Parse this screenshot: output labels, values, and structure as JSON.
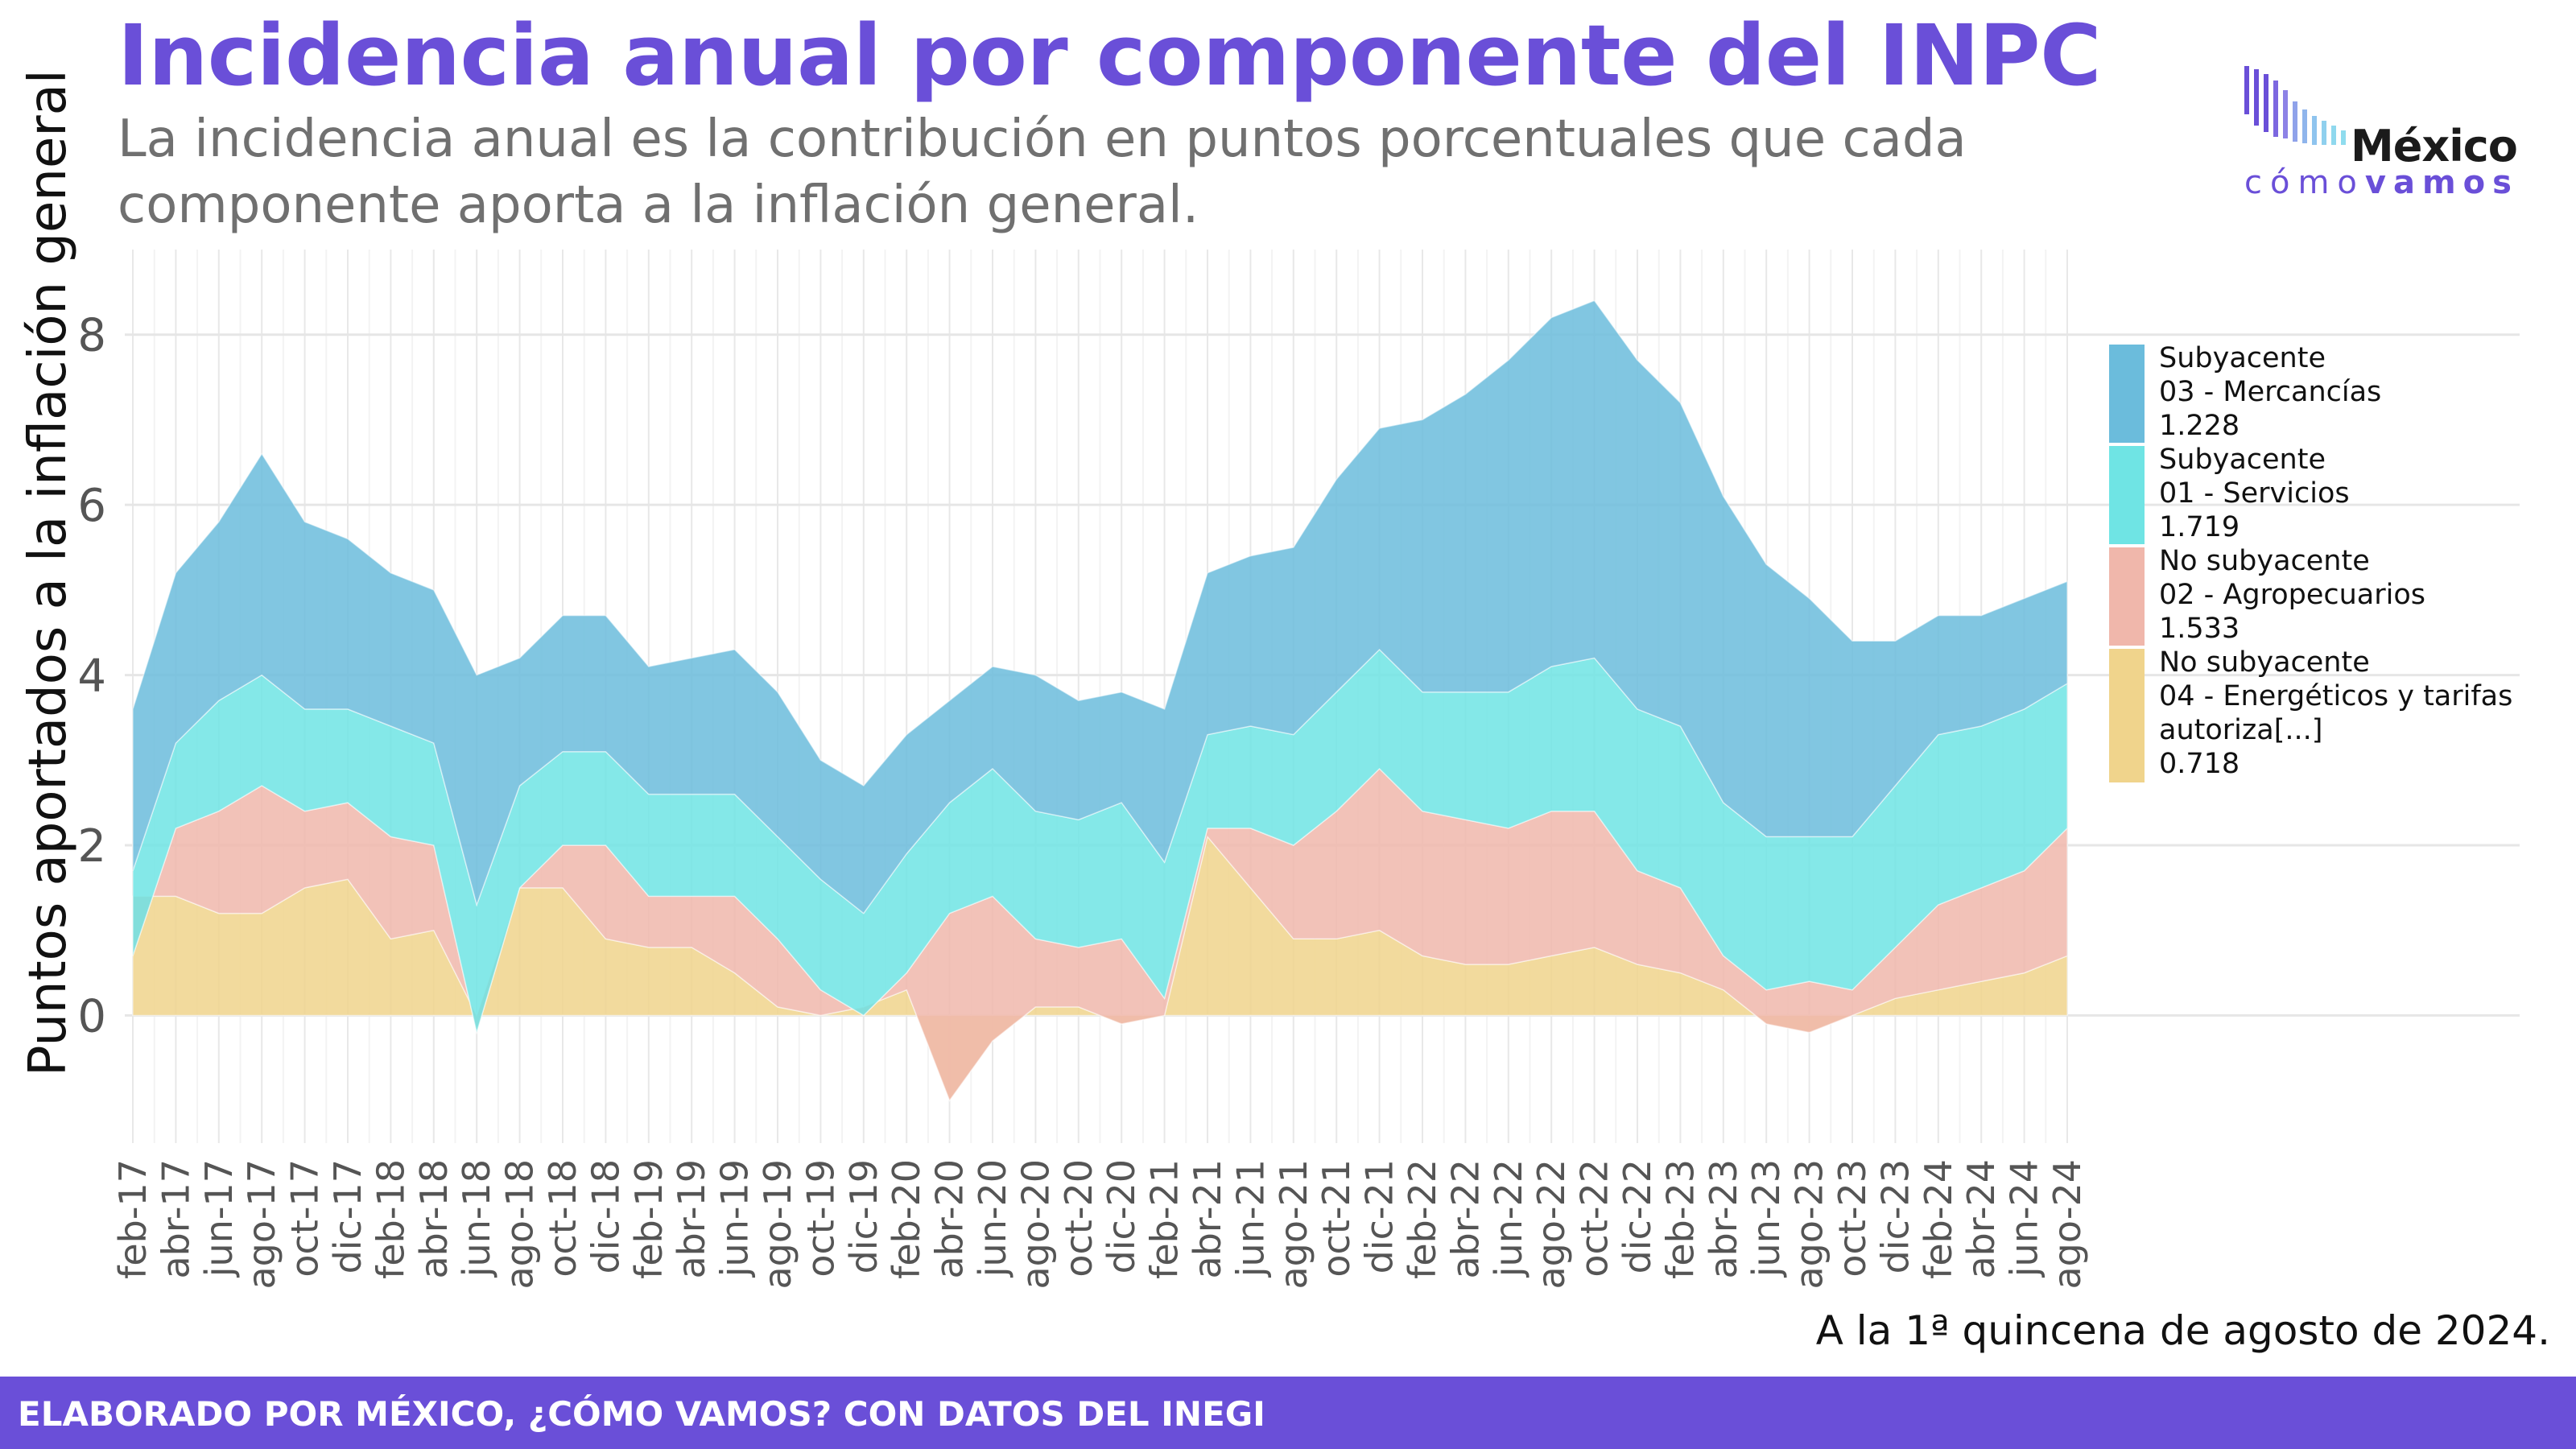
{
  "header": {
    "title": "Incidencia anual por componente del INPC",
    "subtitle": "La incidencia anual es la contribución en puntos porcentuales que cada componente aporta a la inflación general."
  },
  "logo": {
    "brand": "México",
    "tagline_a": "cómo",
    "tagline_b": "vamos"
  },
  "caption": "A la 1ª quincena de agosto de 2024.",
  "footer": "ELABORADO POR MÉXICO, ¿CÓMO VAMOS? CON DATOS DEL INEGI",
  "colors": {
    "accent": "#6a4fd8",
    "mercancias": "#6bbcdc",
    "servicios": "#6fe4e4",
    "agropecuarios": "#f0b7ab",
    "energeticos": "#f0d48c"
  },
  "legend": [
    {
      "group": "Subyacente",
      "component": "03 - Mercancías",
      "extra": "",
      "value": "1.228",
      "color": "#6bbcdc"
    },
    {
      "group": "Subyacente",
      "component": "01 - Servicios",
      "extra": "",
      "value": "1.719",
      "color": "#6fe4e4"
    },
    {
      "group": "No subyacente",
      "component": "02 - Agropecuarios",
      "extra": "",
      "value": "1.533",
      "color": "#f0b7ab"
    },
    {
      "group": "No subyacente",
      "component": "04 - Energéticos y tarifas",
      "extra": "autoriza[...]",
      "value": "0.718",
      "color": "#f0d48c"
    }
  ],
  "chart_data": {
    "type": "area",
    "stacked": true,
    "title": "Incidencia anual por componente del INPC",
    "xlabel": "",
    "ylabel": "Puntos aportados a la inflación general",
    "ylim": [
      -1.5,
      9
    ],
    "yticks": [
      0,
      2,
      4,
      6,
      8
    ],
    "grid": true,
    "legend_position": "right",
    "x_tick_labels": [
      "feb-17",
      "abr-17",
      "jun-17",
      "ago-17",
      "oct-17",
      "dic-17",
      "feb-18",
      "abr-18",
      "jun-18",
      "ago-18",
      "oct-18",
      "dic-18",
      "feb-19",
      "abr-19",
      "jun-19",
      "ago-19",
      "oct-19",
      "dic-19",
      "feb-20",
      "abr-20",
      "jun-20",
      "ago-20",
      "oct-20",
      "dic-20",
      "feb-21",
      "abr-21",
      "jun-21",
      "ago-21",
      "oct-21",
      "dic-21",
      "feb-22",
      "abr-22",
      "jun-22",
      "ago-22",
      "oct-22",
      "dic-22",
      "feb-23",
      "abr-23",
      "jun-23",
      "ago-23",
      "oct-23",
      "dic-23",
      "feb-24",
      "abr-24",
      "jun-24",
      "ago-24"
    ],
    "x": [
      "feb-17",
      "abr-17",
      "jun-17",
      "ago-17",
      "oct-17",
      "dic-17",
      "feb-18",
      "abr-18",
      "jun-18",
      "ago-18",
      "oct-18",
      "dic-18",
      "feb-19",
      "abr-19",
      "jun-19",
      "ago-19",
      "oct-19",
      "dic-19",
      "feb-20",
      "abr-20",
      "jun-20",
      "ago-20",
      "oct-20",
      "dic-20",
      "feb-21",
      "abr-21",
      "jun-21",
      "ago-21",
      "oct-21",
      "dic-21",
      "feb-22",
      "abr-22",
      "jun-22",
      "ago-22",
      "oct-22",
      "dic-22",
      "feb-23",
      "abr-23",
      "jun-23",
      "ago-23",
      "oct-23",
      "dic-23",
      "feb-24",
      "abr-24",
      "jun-24",
      "ago-24"
    ],
    "series": [
      {
        "name": "04 - Energéticos y tarifas autoriza[...]",
        "values": [
          1.4,
          1.4,
          1.2,
          1.2,
          1.5,
          1.6,
          0.9,
          1.0,
          0.0,
          1.5,
          1.5,
          0.9,
          0.8,
          0.8,
          0.5,
          0.1,
          0.0,
          0.1,
          0.3,
          -1.0,
          -0.3,
          0.1,
          0.1,
          -0.1,
          0.0,
          2.1,
          1.5,
          0.9,
          0.9,
          1.0,
          0.7,
          0.6,
          0.6,
          0.7,
          0.8,
          0.6,
          0.5,
          0.3,
          -0.1,
          -0.2,
          0.0,
          0.2,
          0.3,
          0.4,
          0.5,
          0.7
        ]
      },
      {
        "name": "02 - Agropecuarios",
        "values": [
          -0.7,
          0.8,
          1.2,
          1.5,
          0.9,
          0.9,
          1.2,
          1.0,
          -0.2,
          0.0,
          0.5,
          1.1,
          0.6,
          0.6,
          0.9,
          0.8,
          0.3,
          -0.1,
          0.2,
          2.2,
          1.7,
          0.8,
          0.7,
          1.0,
          0.2,
          0.1,
          0.7,
          1.1,
          1.5,
          1.9,
          1.7,
          1.7,
          1.6,
          1.7,
          1.6,
          1.1,
          1.0,
          0.4,
          0.4,
          0.6,
          0.3,
          0.6,
          1.0,
          1.1,
          1.2,
          1.5
        ]
      },
      {
        "name": "01 - Servicios",
        "values": [
          1.0,
          1.0,
          1.3,
          1.3,
          1.2,
          1.1,
          1.3,
          1.2,
          1.5,
          1.2,
          1.1,
          1.1,
          1.2,
          1.2,
          1.2,
          1.2,
          1.3,
          1.2,
          1.4,
          1.3,
          1.5,
          1.5,
          1.5,
          1.6,
          1.6,
          1.1,
          1.2,
          1.3,
          1.4,
          1.4,
          1.4,
          1.5,
          1.6,
          1.7,
          1.8,
          1.9,
          1.9,
          1.8,
          1.8,
          1.7,
          1.8,
          1.9,
          2.0,
          1.9,
          1.9,
          1.7
        ]
      },
      {
        "name": "03 - Mercancías",
        "values": [
          1.9,
          2.0,
          2.1,
          2.6,
          2.2,
          2.0,
          1.8,
          1.8,
          2.7,
          1.5,
          1.6,
          1.6,
          1.5,
          1.6,
          1.7,
          1.7,
          1.4,
          1.5,
          1.4,
          1.2,
          1.2,
          1.6,
          1.4,
          1.3,
          1.8,
          1.9,
          2.0,
          2.2,
          2.5,
          2.6,
          3.2,
          3.5,
          3.9,
          4.1,
          4.2,
          4.1,
          3.8,
          3.6,
          3.2,
          2.8,
          2.3,
          1.7,
          1.4,
          1.3,
          1.3,
          1.2
        ]
      }
    ]
  }
}
